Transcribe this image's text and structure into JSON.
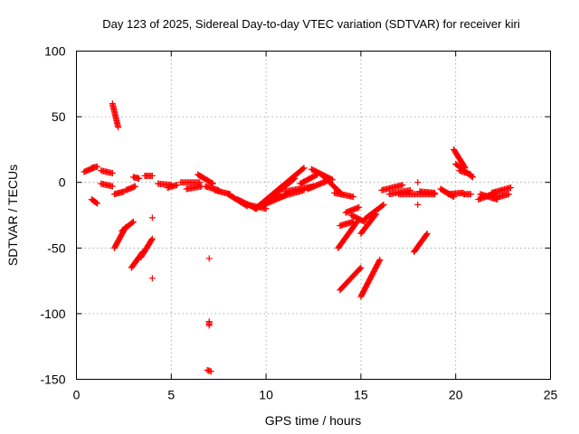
{
  "chart_data": {
    "type": "scatter",
    "title": "Day 123 of 2025, Sidereal Day-to-day VTEC variation (SDTVAR) for receiver kiri",
    "xlabel": "GPS time / hours",
    "ylabel": "SDTVAR / TECUs",
    "xlim": [
      0,
      25
    ],
    "ylim": [
      -150,
      100
    ],
    "xticks": [
      0,
      5,
      10,
      15,
      20,
      25
    ],
    "yticks": [
      -150,
      -100,
      -50,
      0,
      50,
      100
    ],
    "grid": true,
    "point_color": "#ff0000",
    "marker": "plus",
    "segments": [
      {
        "x0": 0.4,
        "y0": 8,
        "x1": 0.9,
        "y1": 11
      },
      {
        "x0": 0.8,
        "y0": 11,
        "x1": 1.1,
        "y1": 12
      },
      {
        "x0": 0.8,
        "y0": -13,
        "x1": 1.1,
        "y1": -16
      },
      {
        "x0": 1.3,
        "y0": 9,
        "x1": 1.9,
        "y1": 7
      },
      {
        "x0": 1.3,
        "y0": -1,
        "x1": 1.9,
        "y1": -3
      },
      {
        "x0": 1.9,
        "y0": 60,
        "x1": 2.2,
        "y1": 42
      },
      {
        "x0": 2.0,
        "y0": -9,
        "x1": 2.5,
        "y1": -7
      },
      {
        "x0": 2.0,
        "y0": -50,
        "x1": 2.6,
        "y1": -34
      },
      {
        "x0": 2.4,
        "y0": -37,
        "x1": 3.0,
        "y1": -30
      },
      {
        "x0": 2.6,
        "y0": -6,
        "x1": 3.1,
        "y1": -3
      },
      {
        "x0": 2.9,
        "y0": -65,
        "x1": 3.5,
        "y1": -53
      },
      {
        "x0": 3.0,
        "y0": 4,
        "x1": 3.3,
        "y1": 3
      },
      {
        "x0": 3.4,
        "y0": -57,
        "x1": 4.0,
        "y1": -43
      },
      {
        "x0": 3.6,
        "y0": 5,
        "x1": 4.0,
        "y1": 5
      },
      {
        "x0": 4.3,
        "y0": -1,
        "x1": 5.0,
        "y1": -2
      },
      {
        "x0": 4.8,
        "y0": -4,
        "x1": 5.3,
        "y1": -2
      },
      {
        "x0": 5.5,
        "y0": 0,
        "x1": 6.5,
        "y1": 0
      },
      {
        "x0": 5.8,
        "y0": -5,
        "x1": 6.6,
        "y1": -3
      },
      {
        "x0": 6.4,
        "y0": 6,
        "x1": 7.2,
        "y1": -1
      },
      {
        "x0": 6.8,
        "y0": -3,
        "x1": 7.5,
        "y1": -6
      },
      {
        "x0": 7.0,
        "y0": -106,
        "x1": 7.0,
        "y1": -109
      },
      {
        "x0": 6.9,
        "y0": -143,
        "x1": 7.1,
        "y1": -144
      },
      {
        "x0": 7.3,
        "y0": -6,
        "x1": 8.1,
        "y1": -9
      },
      {
        "x0": 8.0,
        "y0": -9,
        "x1": 9.0,
        "y1": -18
      },
      {
        "x0": 8.5,
        "y0": -13,
        "x1": 9.5,
        "y1": -20
      },
      {
        "x0": 9.0,
        "y0": -17,
        "x1": 10.0,
        "y1": -20
      },
      {
        "x0": 9.4,
        "y0": -20,
        "x1": 11.0,
        "y1": -10
      },
      {
        "x0": 9.6,
        "y0": -18,
        "x1": 12.0,
        "y1": 11
      },
      {
        "x0": 10.0,
        "y0": -15,
        "x1": 11.5,
        "y1": 3
      },
      {
        "x0": 10.5,
        "y0": -12,
        "x1": 12.0,
        "y1": -6
      },
      {
        "x0": 11.0,
        "y0": -7,
        "x1": 12.5,
        "y1": -3
      },
      {
        "x0": 11.8,
        "y0": -1,
        "x1": 12.7,
        "y1": 6
      },
      {
        "x0": 12.2,
        "y0": -5,
        "x1": 13.2,
        "y1": 1
      },
      {
        "x0": 12.4,
        "y0": 10,
        "x1": 13.5,
        "y1": 2
      },
      {
        "x0": 13.0,
        "y0": 5,
        "x1": 14.0,
        "y1": -9
      },
      {
        "x0": 13.6,
        "y0": -8,
        "x1": 14.6,
        "y1": -11
      },
      {
        "x0": 13.8,
        "y0": -50,
        "x1": 14.8,
        "y1": -30
      },
      {
        "x0": 13.9,
        "y0": -33,
        "x1": 14.6,
        "y1": -30
      },
      {
        "x0": 14.2,
        "y0": -23,
        "x1": 14.9,
        "y1": -19
      },
      {
        "x0": 13.9,
        "y0": -82,
        "x1": 15.0,
        "y1": -65
      },
      {
        "x0": 14.5,
        "y0": -25,
        "x1": 15.2,
        "y1": -30
      },
      {
        "x0": 15.0,
        "y0": -39,
        "x1": 15.8,
        "y1": -24
      },
      {
        "x0": 15.0,
        "y0": -87,
        "x1": 16.0,
        "y1": -59
      },
      {
        "x0": 15.2,
        "y0": -28,
        "x1": 16.2,
        "y1": -17
      },
      {
        "x0": 16.1,
        "y0": -6,
        "x1": 17.2,
        "y1": -2
      },
      {
        "x0": 16.5,
        "y0": -9,
        "x1": 17.6,
        "y1": -6
      },
      {
        "x0": 17.0,
        "y0": -9,
        "x1": 18.9,
        "y1": -9
      },
      {
        "x0": 17.8,
        "y0": -53,
        "x1": 18.5,
        "y1": -39
      },
      {
        "x0": 18.1,
        "y0": -7,
        "x1": 18.9,
        "y1": -8
      },
      {
        "x0": 19.2,
        "y0": -5,
        "x1": 19.9,
        "y1": -11
      },
      {
        "x0": 19.6,
        "y0": -9,
        "x1": 20.4,
        "y1": -8
      },
      {
        "x0": 19.9,
        "y0": 25,
        "x1": 20.5,
        "y1": 11
      },
      {
        "x0": 20.0,
        "y0": 14,
        "x1": 20.9,
        "y1": 4
      },
      {
        "x0": 20.2,
        "y0": 9,
        "x1": 20.8,
        "y1": 6
      },
      {
        "x0": 20.4,
        "y0": -9,
        "x1": 20.8,
        "y1": -9
      },
      {
        "x0": 21.2,
        "y0": -13,
        "x1": 22.1,
        "y1": -8
      },
      {
        "x0": 21.3,
        "y0": -9,
        "x1": 22.2,
        "y1": -13
      },
      {
        "x0": 21.9,
        "y0": -8,
        "x1": 22.9,
        "y1": -4
      },
      {
        "x0": 22.0,
        "y0": -12,
        "x1": 22.8,
        "y1": -9
      }
    ],
    "points": [
      {
        "x": 4.0,
        "y": -27
      },
      {
        "x": 4.0,
        "y": -73
      },
      {
        "x": 7.0,
        "y": -58
      },
      {
        "x": 18.0,
        "y": 0
      },
      {
        "x": 18.0,
        "y": -17
      }
    ]
  }
}
